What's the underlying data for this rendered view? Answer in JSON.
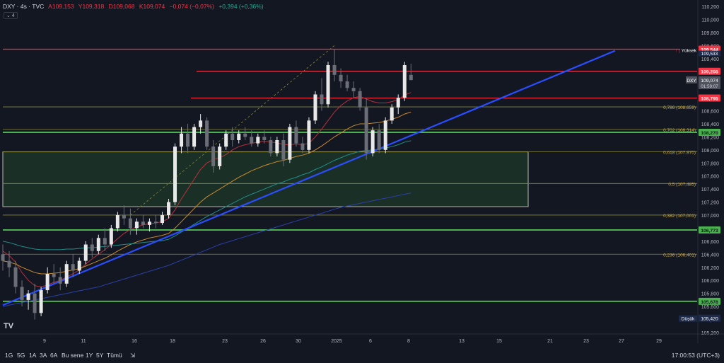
{
  "legend": {
    "symbol": "DXY · 4s · TVC",
    "open": "A109,153",
    "high": "Y109,318",
    "low": "D109,068",
    "close": "K109,074",
    "change": "−0,074 (−0,07%)",
    "change2": "+0,394 (+0,36%)",
    "collapse_label": "⌄ 4"
  },
  "colors": {
    "background": "#131722",
    "bull": "#e8e8e8",
    "bear": "#6b6e76",
    "resistance": "#f23645",
    "support": "#4caf50",
    "fib": "#8a8a3a",
    "trendline": "#2a4dff",
    "ma_red": "#b2323c",
    "ma_orange": "#c98a2a",
    "ma_teal": "#1f8f8a",
    "ma_blue": "#2b3fa8"
  },
  "chart_data": {
    "type": "candlestick",
    "symbol": "DXY",
    "timeframe": "4s",
    "ylim": [
      105.2,
      110.2
    ],
    "y_ticks": [
      "110,200",
      "110,000",
      "109,800",
      "109,600",
      "109,400",
      "109,200",
      "109,000",
      "108,800",
      "108,600",
      "108,400",
      "108,200",
      "108,000",
      "107,800",
      "107,600",
      "107,400",
      "107,200",
      "107,000",
      "106,800",
      "106,600",
      "106,400",
      "106,200",
      "106,000",
      "105,800",
      "105,600",
      "105,400",
      "105,200"
    ],
    "y_tick_values": [
      110.2,
      110.0,
      109.8,
      109.6,
      109.4,
      109.2,
      109.0,
      108.8,
      108.6,
      108.4,
      108.2,
      108.0,
      107.8,
      107.6,
      107.4,
      107.2,
      107.0,
      106.8,
      106.6,
      106.4,
      106.2,
      106.0,
      105.8,
      105.6,
      105.4,
      105.2
    ],
    "x_ticks": [
      "9",
      "11",
      "16",
      "18",
      "23",
      "26",
      "30",
      "2025",
      "6",
      "8",
      "13",
      "15",
      "21",
      "23",
      "27",
      "29"
    ],
    "x_tick_positions": [
      63,
      118,
      190,
      244,
      318,
      372,
      422,
      476,
      524,
      578,
      653,
      706,
      778,
      829,
      879,
      932
    ],
    "horizontal_levels": [
      {
        "label": "109,544",
        "value": 109.544,
        "kind": "resistance"
      },
      {
        "label": "109,205",
        "value": 109.205,
        "kind": "resistance"
      },
      {
        "label": "108,795",
        "value": 108.795,
        "kind": "resistance"
      },
      {
        "label": "108,270",
        "value": 108.27,
        "kind": "support"
      },
      {
        "label": "106,773",
        "value": 106.773,
        "kind": "support"
      },
      {
        "label": "105,678",
        "value": 105.678,
        "kind": "support"
      }
    ],
    "fib_levels": [
      {
        "label": "0,786 (108,659)",
        "value": 108.659
      },
      {
        "label": "0,702 (108,314)",
        "value": 108.314
      },
      {
        "label": "0,618 (107,970)",
        "value": 107.97
      },
      {
        "label": "0,5 (107,485)",
        "value": 107.485
      },
      {
        "label": "0,382 (107,001)",
        "value": 107.001
      },
      {
        "label": "0,236 (106,401)",
        "value": 106.401
      }
    ],
    "price_tags": {
      "high_label": "Yüksek",
      "high_value": "109,533",
      "high_marker": "↑ (1",
      "current_symbol": "DXY",
      "current_value": "109,074",
      "countdown": "01:59:07",
      "low_label": "Düşük",
      "low_value": "105,420"
    },
    "candles": [
      [
        106.4,
        106.55,
        106.15,
        106.3
      ],
      [
        106.3,
        106.45,
        106.05,
        106.2
      ],
      [
        106.2,
        106.3,
        105.8,
        105.9
      ],
      [
        105.9,
        106.0,
        105.6,
        105.7
      ],
      [
        105.7,
        105.85,
        105.55,
        105.8
      ],
      [
        105.8,
        105.95,
        105.4,
        105.5
      ],
      [
        105.5,
        105.9,
        105.45,
        105.85
      ],
      [
        105.85,
        106.2,
        105.8,
        106.1
      ],
      [
        106.1,
        106.25,
        105.95,
        106.05
      ],
      [
        106.05,
        106.2,
        105.85,
        105.95
      ],
      [
        105.95,
        106.3,
        105.9,
        106.25
      ],
      [
        106.25,
        106.4,
        106.05,
        106.15
      ],
      [
        106.15,
        106.35,
        106.1,
        106.3
      ],
      [
        106.3,
        106.6,
        106.25,
        106.55
      ],
      [
        106.55,
        106.65,
        106.35,
        106.45
      ],
      [
        106.45,
        106.7,
        106.4,
        106.65
      ],
      [
        106.65,
        106.8,
        106.45,
        106.55
      ],
      [
        106.55,
        106.85,
        106.5,
        106.8
      ],
      [
        106.8,
        107.05,
        106.75,
        107.0
      ],
      [
        107.0,
        107.15,
        106.85,
        106.95
      ],
      [
        106.95,
        107.1,
        106.7,
        106.8
      ],
      [
        106.8,
        106.95,
        106.7,
        106.9
      ],
      [
        106.9,
        107.0,
        106.8,
        106.85
      ],
      [
        106.85,
        106.95,
        106.75,
        106.9
      ],
      [
        106.9,
        107.0,
        106.8,
        106.88
      ],
      [
        106.88,
        107.05,
        106.85,
        107.0
      ],
      [
        107.0,
        107.25,
        106.95,
        107.2
      ],
      [
        107.2,
        108.1,
        107.15,
        108.05
      ],
      [
        108.05,
        108.35,
        107.95,
        108.25
      ],
      [
        108.25,
        108.4,
        107.95,
        108.05
      ],
      [
        108.05,
        108.4,
        108.0,
        108.35
      ],
      [
        108.35,
        108.55,
        108.25,
        108.45
      ],
      [
        108.45,
        108.5,
        108.0,
        108.05
      ],
      [
        108.05,
        108.15,
        107.65,
        107.75
      ],
      [
        107.75,
        108.1,
        107.7,
        108.05
      ],
      [
        108.05,
        108.3,
        108.0,
        108.25
      ],
      [
        108.25,
        108.35,
        108.05,
        108.15
      ],
      [
        108.15,
        108.3,
        108.1,
        108.25
      ],
      [
        108.25,
        108.35,
        108.15,
        108.2
      ],
      [
        108.2,
        108.3,
        108.05,
        108.1
      ],
      [
        108.1,
        108.25,
        108.05,
        108.2
      ],
      [
        108.2,
        108.3,
        108.1,
        108.15
      ],
      [
        108.15,
        108.2,
        107.9,
        107.95
      ],
      [
        107.95,
        108.2,
        107.9,
        108.15
      ],
      [
        108.15,
        108.25,
        107.75,
        107.85
      ],
      [
        107.85,
        108.4,
        107.8,
        108.35
      ],
      [
        108.35,
        108.45,
        108.05,
        108.1
      ],
      [
        108.1,
        108.2,
        107.95,
        108.0
      ],
      [
        108.0,
        108.5,
        107.95,
        108.45
      ],
      [
        108.45,
        108.9,
        108.4,
        108.85
      ],
      [
        108.85,
        109.1,
        108.6,
        108.7
      ],
      [
        108.7,
        109.35,
        108.65,
        109.3
      ],
      [
        109.3,
        109.55,
        109.05,
        109.15
      ],
      [
        109.15,
        109.25,
        108.95,
        109.05
      ],
      [
        109.05,
        109.15,
        108.9,
        108.95
      ],
      [
        108.95,
        109.05,
        108.8,
        108.9
      ],
      [
        108.9,
        108.95,
        108.6,
        108.65
      ],
      [
        108.65,
        108.8,
        107.85,
        107.95
      ],
      [
        107.95,
        108.35,
        107.9,
        108.3
      ],
      [
        108.3,
        108.4,
        107.95,
        108.0
      ],
      [
        108.0,
        108.5,
        107.95,
        108.45
      ],
      [
        108.45,
        108.7,
        108.4,
        108.65
      ],
      [
        108.65,
        108.85,
        108.55,
        108.8
      ],
      [
        108.8,
        109.35,
        108.75,
        109.3
      ],
      [
        109.15,
        109.32,
        109.07,
        109.07
      ]
    ],
    "moving_averages": [
      {
        "color": "ma_red",
        "values": [
          106.45,
          106.38,
          106.28,
          106.12,
          106.0,
          105.92,
          105.9,
          105.93,
          105.97,
          106.0,
          106.05,
          106.1,
          106.16,
          106.25,
          106.33,
          106.4,
          106.47,
          106.55,
          106.64,
          106.72,
          106.78,
          106.82,
          106.85,
          106.87,
          106.88,
          106.9,
          106.95,
          107.08,
          107.25,
          107.4,
          107.55,
          107.7,
          107.8,
          107.85,
          107.88,
          107.93,
          108.0,
          108.05,
          108.08,
          108.1,
          108.12,
          108.13,
          108.12,
          108.11,
          108.08,
          108.08,
          108.09,
          108.08,
          108.1,
          108.2,
          108.32,
          108.45,
          108.58,
          108.68,
          108.75,
          108.8,
          108.82,
          108.78,
          108.74,
          108.72,
          108.72,
          108.74,
          108.77,
          108.84,
          108.88
        ]
      },
      {
        "color": "ma_orange",
        "values": [
          106.3,
          106.28,
          106.25,
          106.2,
          106.16,
          106.12,
          106.1,
          106.1,
          106.11,
          106.12,
          106.14,
          106.16,
          106.18,
          106.22,
          106.26,
          106.3,
          106.34,
          106.39,
          106.45,
          106.5,
          106.55,
          106.59,
          106.62,
          106.65,
          106.67,
          106.69,
          106.72,
          106.8,
          106.9,
          107.0,
          107.1,
          107.2,
          107.28,
          107.34,
          107.4,
          107.46,
          107.52,
          107.58,
          107.63,
          107.68,
          107.72,
          107.76,
          107.79,
          107.82,
          107.84,
          107.87,
          107.9,
          107.92,
          107.95,
          108.0,
          108.06,
          108.13,
          108.2,
          108.26,
          108.32,
          108.37,
          108.4,
          108.4,
          108.41,
          108.42,
          108.44,
          108.47,
          108.5,
          108.55,
          108.58
        ]
      },
      {
        "color": "ma_teal",
        "values": [
          106.6,
          106.58,
          106.55,
          106.52,
          106.5,
          106.48,
          106.47,
          106.47,
          106.47,
          106.47,
          106.48,
          106.48,
          106.49,
          106.5,
          106.5,
          106.51,
          106.52,
          106.53,
          106.54,
          106.55,
          106.56,
          106.57,
          106.58,
          106.59,
          106.6,
          106.61,
          106.63,
          106.68,
          106.74,
          106.8,
          106.86,
          106.92,
          106.98,
          107.03,
          107.08,
          107.13,
          107.18,
          107.23,
          107.28,
          107.32,
          107.36,
          107.4,
          107.44,
          107.48,
          107.51,
          107.55,
          107.58,
          107.62,
          107.65,
          107.7,
          107.74,
          107.79,
          107.84,
          107.88,
          107.92,
          107.95,
          107.98,
          107.99,
          108.0,
          108.01,
          108.03,
          108.05,
          108.08,
          108.12,
          108.14
        ]
      },
      {
        "color": "ma_blue",
        "values": [
          105.6,
          105.62,
          105.64,
          105.66,
          105.68,
          105.7,
          105.72,
          105.74,
          105.76,
          105.78,
          105.8,
          105.82,
          105.84,
          105.86,
          105.88,
          105.9,
          105.93,
          105.96,
          105.99,
          106.02,
          106.05,
          106.08,
          106.11,
          106.14,
          106.17,
          106.2,
          106.23,
          106.27,
          106.31,
          106.35,
          106.39,
          106.43,
          106.47,
          106.51,
          106.55,
          106.58,
          106.61,
          106.64,
          106.67,
          106.7,
          106.73,
          106.76,
          106.79,
          106.82,
          106.85,
          106.88,
          106.91,
          106.94,
          106.97,
          107.0,
          107.03,
          107.06,
          107.09,
          107.12,
          107.14,
          107.16,
          107.18,
          107.2,
          107.22,
          107.24,
          107.26,
          107.28,
          107.3,
          107.32,
          107.34
        ]
      }
    ],
    "trendline": {
      "from": [
        0,
        105.62
      ],
      "to": [
        96,
        109.52
      ]
    },
    "zone": {
      "top": 107.97,
      "bottom": 107.13
    }
  },
  "bottom_bar": {
    "timeframes": [
      "1G",
      "5G",
      "1A",
      "3A",
      "6A",
      "Bu sene",
      "1Y",
      "5Y",
      "Tümü"
    ],
    "clock": "17:00:53 (UTC+3)"
  }
}
